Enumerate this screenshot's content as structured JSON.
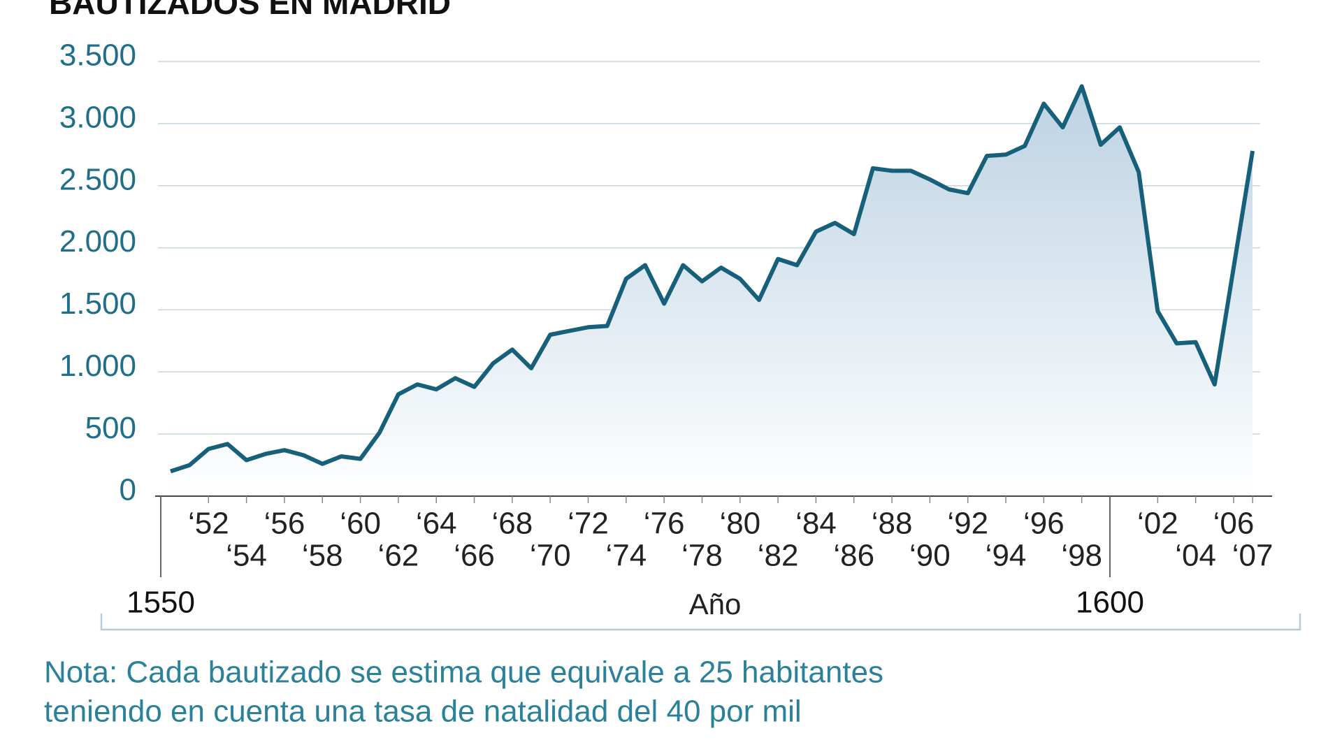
{
  "chart_data": {
    "type": "area-line",
    "title": "BAUTIZADOS EN MADRID",
    "x_label": "Año",
    "note_lines": [
      "Nota: Cada bautizado se estima que equivale a 25 habitantes",
      "teniendo en cuenta una tasa de natalidad del 40 por mil"
    ],
    "x": [
      1550,
      1551,
      1552,
      1553,
      1554,
      1555,
      1556,
      1557,
      1558,
      1559,
      1560,
      1561,
      1562,
      1563,
      1564,
      1565,
      1566,
      1567,
      1568,
      1569,
      1570,
      1571,
      1572,
      1573,
      1574,
      1575,
      1576,
      1577,
      1578,
      1579,
      1580,
      1581,
      1582,
      1583,
      1584,
      1585,
      1586,
      1587,
      1588,
      1589,
      1590,
      1591,
      1592,
      1593,
      1594,
      1595,
      1596,
      1597,
      1598,
      1599,
      1600,
      1601,
      1602,
      1603,
      1604,
      1605,
      1607
    ],
    "values": [
      200,
      250,
      380,
      420,
      290,
      340,
      370,
      330,
      260,
      320,
      300,
      510,
      820,
      900,
      860,
      950,
      880,
      1070,
      1180,
      1030,
      1300,
      1330,
      1360,
      1370,
      1750,
      1860,
      1550,
      1860,
      1730,
      1840,
      1750,
      1580,
      1910,
      1860,
      2130,
      2200,
      2110,
      2640,
      2620,
      2620,
      2550,
      2470,
      2440,
      2740,
      2750,
      2820,
      3160,
      2970,
      3300,
      2830,
      2970,
      2610,
      1490,
      1230,
      1240,
      900,
      2780
    ],
    "color": "#17607a",
    "xlim": [
      1550,
      1609
    ],
    "ylim": [
      0,
      3500
    ],
    "yticks": [
      0,
      {
        "value": 500,
        "label": "500"
      },
      {
        "value": 1000,
        "label": "1.000"
      },
      {
        "value": 1500,
        "label": "1.500"
      },
      {
        "value": 2000,
        "label": "2.000"
      },
      {
        "value": 2500,
        "label": "2.500"
      },
      {
        "value": 3000,
        "label": "3.000"
      },
      {
        "value": 3500,
        "label": "3.500"
      }
    ],
    "xticks": [
      {
        "value": 1552,
        "label": "‘52"
      },
      {
        "value": 1554,
        "label": "‘54"
      },
      {
        "value": 1556,
        "label": "‘56"
      },
      {
        "value": 1558,
        "label": "‘58"
      },
      {
        "value": 1560,
        "label": "‘60"
      },
      {
        "value": 1562,
        "label": "‘62"
      },
      {
        "value": 1564,
        "label": "‘64"
      },
      {
        "value": 1566,
        "label": "‘66"
      },
      {
        "value": 1568,
        "label": "‘68"
      },
      {
        "value": 1570,
        "label": "‘70"
      },
      {
        "value": 1572,
        "label": "‘72"
      },
      {
        "value": 1574,
        "label": "‘74"
      },
      {
        "value": 1576,
        "label": "‘76"
      },
      {
        "value": 1578,
        "label": "‘78"
      },
      {
        "value": 1580,
        "label": "‘80"
      },
      {
        "value": 1582,
        "label": "‘82"
      },
      {
        "value": 1584,
        "label": "‘84"
      },
      {
        "value": 1586,
        "label": "‘86"
      },
      {
        "value": 1588,
        "label": "‘88"
      },
      {
        "value": 1590,
        "label": "‘90"
      },
      {
        "value": 1592,
        "label": "‘92"
      },
      {
        "value": 1594,
        "label": "‘94"
      },
      {
        "value": 1596,
        "label": "‘96"
      },
      {
        "value": 1598,
        "label": "‘98"
      },
      {
        "value": 1602,
        "label": "‘02"
      },
      {
        "value": 1604,
        "label": "‘04"
      },
      {
        "value": 1606,
        "label": "‘06"
      },
      {
        "value": 1607,
        "label": "‘07"
      }
    ],
    "century_ticks": [
      1550,
      1600
    ],
    "grid": true
  }
}
